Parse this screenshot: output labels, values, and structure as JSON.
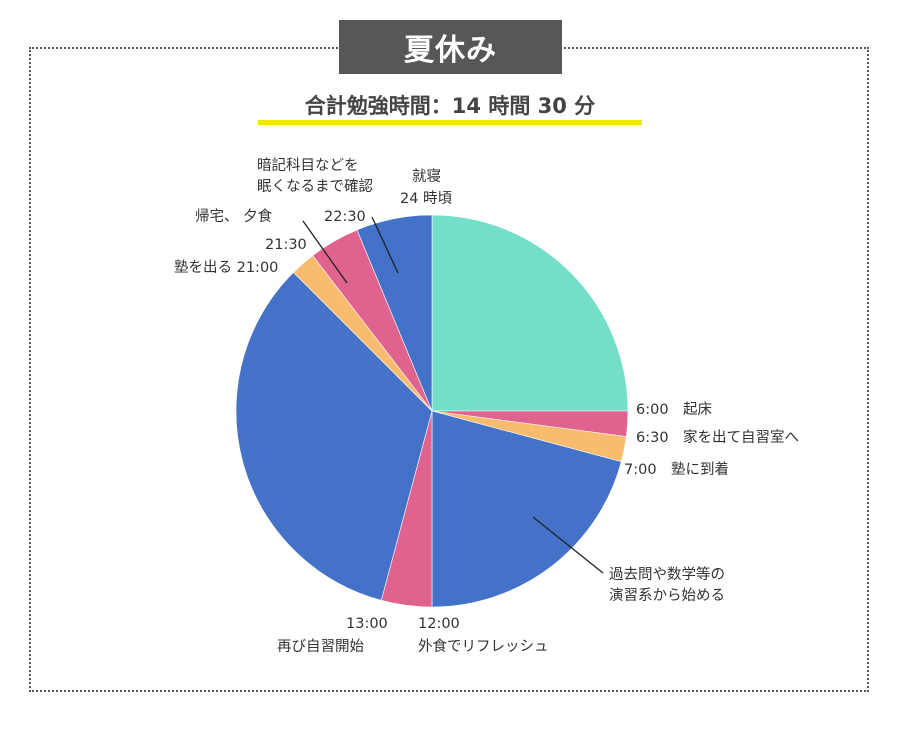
{
  "header": {
    "title": "夏休み",
    "subtitle": "合計勉強時間：14 時間 30 分"
  },
  "chart_data": {
    "type": "pie",
    "title": "夏休み",
    "subtitle": "合計勉強時間：14 時間 30 分",
    "unit": "hours",
    "start": "6:00",
    "slices": [
      {
        "start": "6:00",
        "end": "12:00",
        "value": 6.0,
        "color": "#74dfc8",
        "activity": ""
      },
      {
        "start": "6:00",
        "end": "6:30",
        "value": 0.5,
        "color": "#e0638f",
        "activity": "起床"
      },
      {
        "start": "6:30",
        "end": "7:00",
        "value": 0.5,
        "color": "#f9bb6e",
        "activity": "家を出て自習室へ"
      },
      {
        "start": "7:00",
        "end": "12:00",
        "value": 5.0,
        "color": "#4472c8",
        "activity": "塾に到着"
      },
      {
        "start": "12:00",
        "end": "13:00",
        "value": 1.0,
        "color": "#e0638f",
        "activity": "外食でリフレッシュ"
      },
      {
        "start": "13:00",
        "end": "21:00",
        "value": 8.0,
        "color": "#4472c8",
        "activity": "再び自習開始"
      },
      {
        "start": "21:00",
        "end": "21:30",
        "value": 0.5,
        "color": "#f9bb6e",
        "activity": "塾を出る"
      },
      {
        "start": "21:30",
        "end": "22:30",
        "value": 1.0,
        "color": "#e0638f",
        "activity": "帰宅、 夕食"
      },
      {
        "start": "22:30",
        "end": "24:00",
        "value": 1.5,
        "color": "#4472c8",
        "activity": "暗記科目などを眠くなるまで確認"
      }
    ],
    "annotations": [
      {
        "id": "a1",
        "lines": [
          "6:00　起床"
        ]
      },
      {
        "id": "a2",
        "lines": [
          "6:30　家を出て自習室へ"
        ]
      },
      {
        "id": "a3",
        "lines": [
          "7:00　塾に到着"
        ]
      },
      {
        "id": "a4",
        "lines": [
          "過去問や数学等の",
          "演習系から始める"
        ]
      },
      {
        "id": "a5",
        "lines": [
          "12:00",
          "外食でリフレッシュ"
        ]
      },
      {
        "id": "a6",
        "lines": [
          "13:00",
          "再び自習開始"
        ]
      },
      {
        "id": "a7",
        "lines": [
          "塾を出る 21:00"
        ]
      },
      {
        "id": "a8",
        "lines": [
          "21:30"
        ]
      },
      {
        "id": "a9",
        "lines": [
          "帰宅、 夕食"
        ]
      },
      {
        "id": "a10",
        "lines": [
          "22:30"
        ]
      },
      {
        "id": "a11",
        "lines": [
          "暗記科目などを",
          "眠くなるまで確認"
        ]
      },
      {
        "id": "a12",
        "lines": [
          "就寝",
          "24 時頃"
        ]
      }
    ]
  }
}
